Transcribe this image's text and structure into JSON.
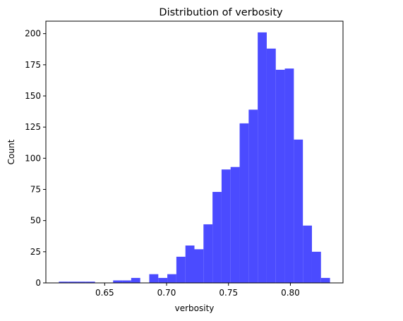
{
  "chart_data": {
    "type": "histogram",
    "title": "Distribution of verbosity",
    "xlabel": "verbosity",
    "ylabel": "Count",
    "xlim": [
      0.6025,
      0.8425
    ],
    "ylim": [
      0,
      210
    ],
    "xticks": [
      0.65,
      0.7,
      0.75,
      0.8
    ],
    "xtick_labels": [
      "0.65",
      "0.70",
      "0.75",
      "0.80"
    ],
    "yticks": [
      0,
      25,
      50,
      75,
      100,
      125,
      150,
      175,
      200
    ],
    "ytick_labels": [
      "0",
      "25",
      "50",
      "75",
      "100",
      "125",
      "150",
      "175",
      "200"
    ],
    "bar_color": "#4b4bff",
    "grid": false,
    "bins": [
      {
        "x0": 0.613,
        "x1": 0.6203,
        "count": 1
      },
      {
        "x0": 0.6203,
        "x1": 0.6276,
        "count": 1
      },
      {
        "x0": 0.6276,
        "x1": 0.6349,
        "count": 1
      },
      {
        "x0": 0.6349,
        "x1": 0.6422,
        "count": 1
      },
      {
        "x0": 0.6422,
        "x1": 0.6495,
        "count": 0
      },
      {
        "x0": 0.6495,
        "x1": 0.6568,
        "count": 0
      },
      {
        "x0": 0.6568,
        "x1": 0.6641,
        "count": 2
      },
      {
        "x0": 0.6641,
        "x1": 0.6714,
        "count": 2
      },
      {
        "x0": 0.6714,
        "x1": 0.6787,
        "count": 4
      },
      {
        "x0": 0.6787,
        "x1": 0.686,
        "count": 0
      },
      {
        "x0": 0.686,
        "x1": 0.6933,
        "count": 7
      },
      {
        "x0": 0.6933,
        "x1": 0.7006,
        "count": 4
      },
      {
        "x0": 0.7006,
        "x1": 0.7079,
        "count": 7
      },
      {
        "x0": 0.7079,
        "x1": 0.7152,
        "count": 21
      },
      {
        "x0": 0.7152,
        "x1": 0.7225,
        "count": 30
      },
      {
        "x0": 0.7225,
        "x1": 0.7298,
        "count": 27
      },
      {
        "x0": 0.7298,
        "x1": 0.7371,
        "count": 47
      },
      {
        "x0": 0.7371,
        "x1": 0.7444,
        "count": 73
      },
      {
        "x0": 0.7444,
        "x1": 0.7517,
        "count": 91
      },
      {
        "x0": 0.7517,
        "x1": 0.759,
        "count": 93
      },
      {
        "x0": 0.759,
        "x1": 0.7663,
        "count": 128
      },
      {
        "x0": 0.7663,
        "x1": 0.7736,
        "count": 139
      },
      {
        "x0": 0.7736,
        "x1": 0.7809,
        "count": 201
      },
      {
        "x0": 0.7809,
        "x1": 0.7882,
        "count": 188
      },
      {
        "x0": 0.7882,
        "x1": 0.7955,
        "count": 171
      },
      {
        "x0": 0.7955,
        "x1": 0.8028,
        "count": 172
      },
      {
        "x0": 0.8028,
        "x1": 0.8101,
        "count": 115
      },
      {
        "x0": 0.8101,
        "x1": 0.8174,
        "count": 46
      },
      {
        "x0": 0.8174,
        "x1": 0.8247,
        "count": 25
      },
      {
        "x0": 0.8247,
        "x1": 0.832,
        "count": 4
      }
    ]
  }
}
